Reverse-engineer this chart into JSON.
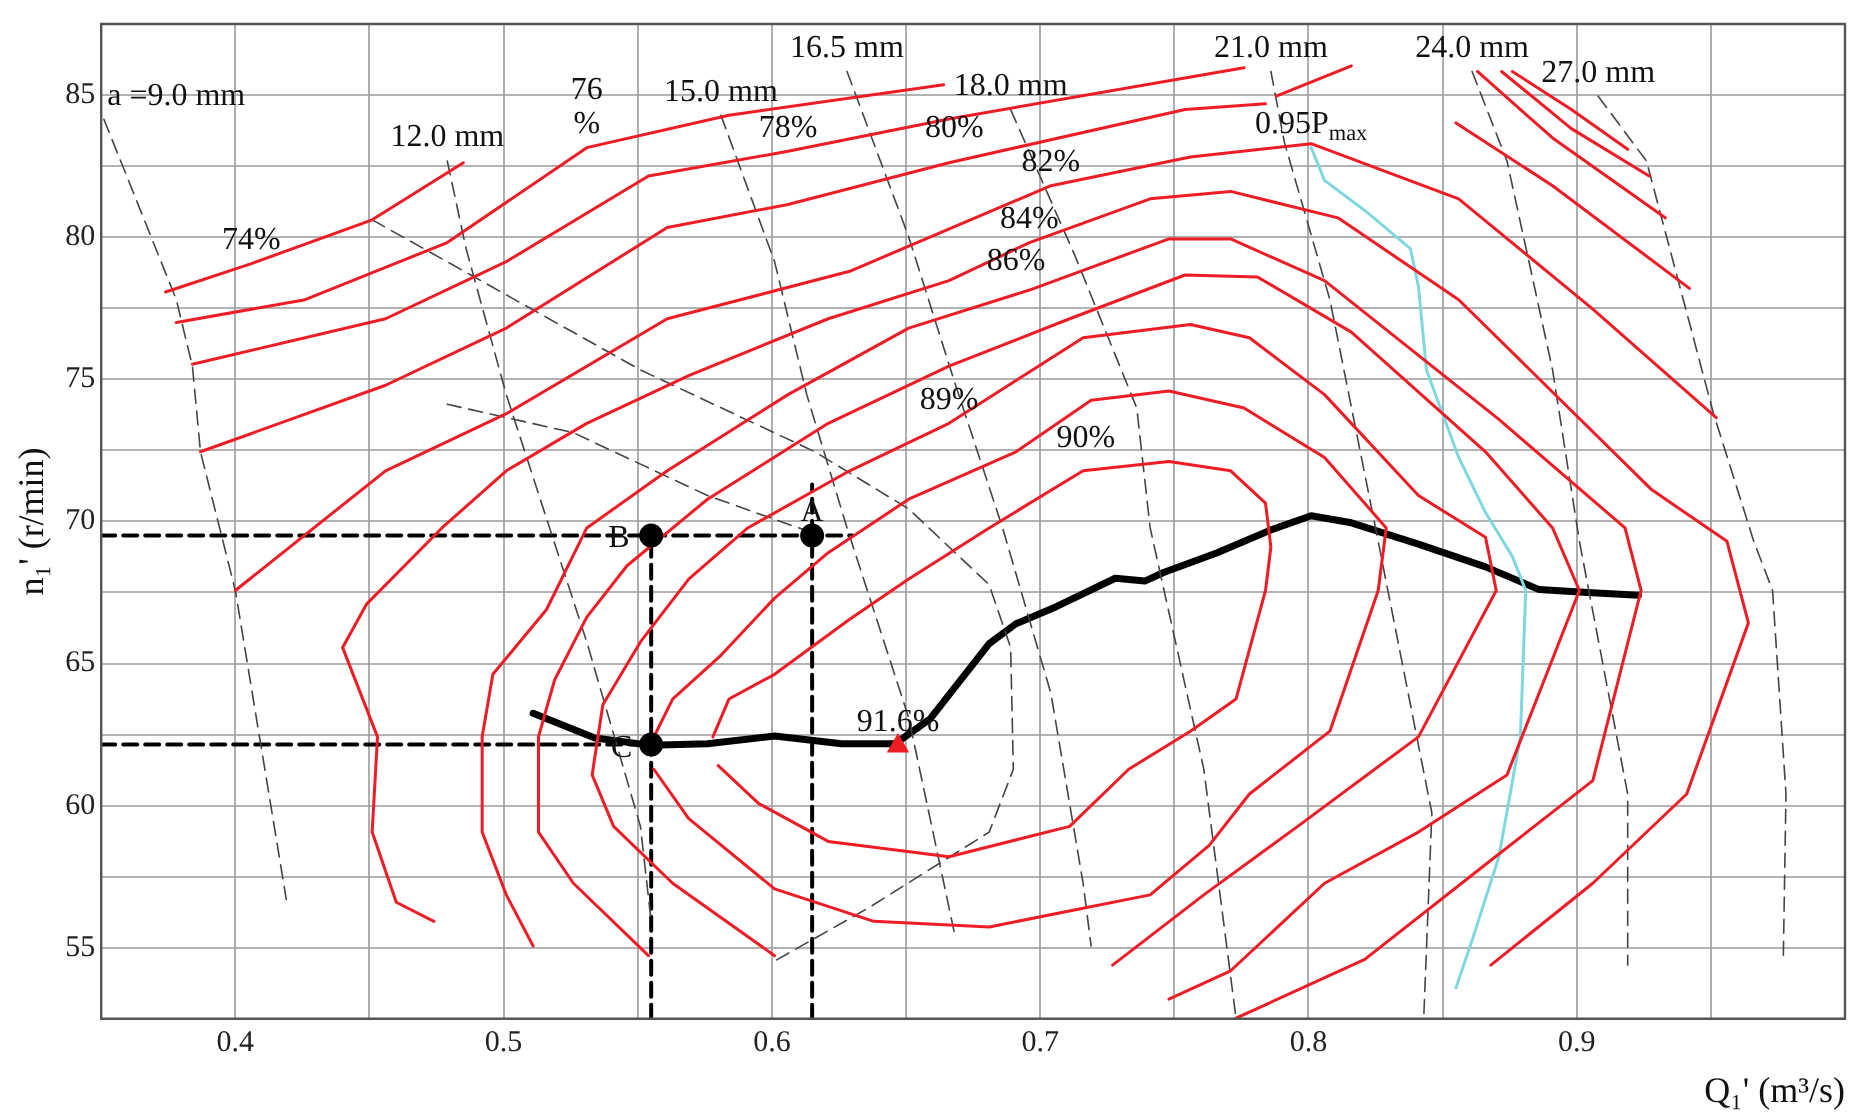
{
  "chart_data": {
    "type": "line",
    "xlabel": "Q₁' (m³/s)",
    "ylabel": "n₁' (r/min)",
    "xlim": [
      0.35,
      1.0
    ],
    "ylim": [
      52.5,
      87.5
    ],
    "xticks": [
      0.4,
      {
        "value": 0.45,
        "label": null
      },
      0.5,
      {
        "value": 0.55,
        "label": null
      },
      0.6,
      {
        "value": 0.65,
        "label": null
      },
      0.7,
      {
        "value": 0.75,
        "label": null
      },
      0.8,
      {
        "value": 0.85,
        "label": null
      },
      0.9,
      {
        "value": 0.95,
        "label": null
      }
    ],
    "yticks": [
      55,
      {
        "value": 57.5,
        "label": null
      },
      60,
      {
        "value": 62.5,
        "label": null
      },
      65,
      {
        "value": 67.5,
        "label": null
      },
      70,
      {
        "value": 72.5,
        "label": null
      },
      75,
      {
        "value": 77.5,
        "label": null
      },
      80,
      {
        "value": 82.5,
        "label": null
      },
      85
    ],
    "grid": true,
    "series": [
      {
        "color": "#ee1c25",
        "x": [
          0.374,
          0.406,
          0.451,
          0.485
        ],
        "values": [
          78.07,
          79.07,
          80.61,
          82.62
        ]
      },
      {
        "color": "#ee1c25",
        "x": [
          0.876,
          0.898,
          0.919
        ],
        "values": [
          85.83,
          84.49,
          83.09
        ]
      },
      {
        "color": "#ee1c25",
        "x": [
          0.378,
          0.426,
          0.479,
          0.531,
          0.584,
          0.664
        ],
        "values": [
          77.0,
          77.8,
          79.81,
          83.15,
          84.29,
          85.36
        ]
      },
      {
        "color": "#ee1c25",
        "x": [
          0.872,
          0.898,
          0.927
        ],
        "values": [
          85.83,
          83.82,
          82.15
        ]
      },
      {
        "color": "#ee1c25",
        "x": [
          0.384,
          0.456,
          0.501,
          0.554,
          0.606,
          0.666,
          0.776
        ],
        "values": [
          75.53,
          77.13,
          79.14,
          82.15,
          83.02,
          84.16,
          85.96
        ]
      },
      {
        "color": "#ee1c25",
        "x": [
          0.863,
          0.891,
          0.933
        ],
        "values": [
          85.83,
          83.49,
          80.68
        ]
      },
      {
        "color": "#ee1c25",
        "x": [
          0.387,
          0.456,
          0.501,
          0.561,
          0.606,
          0.666,
          0.754,
          0.784
        ],
        "values": [
          72.45,
          74.79,
          76.8,
          80.34,
          81.15,
          82.62,
          84.49,
          84.69
        ]
      },
      {
        "color": "#ee1c25",
        "x": [
          0.788,
          0.816
        ],
        "values": [
          84.96,
          86.03
        ]
      },
      {
        "color": "#ee1c25",
        "x": [
          0.855,
          0.891,
          0.942
        ],
        "values": [
          84.02,
          81.81,
          78.2
        ]
      },
      {
        "color": "#ee1c25",
        "x": [
          0.4,
          0.456,
          0.501,
          0.561,
          0.629,
          0.704,
          0.756,
          0.801,
          0.856,
          0.906,
          0.952
        ],
        "values": [
          67.57,
          71.78,
          73.79,
          77.13,
          78.8,
          81.81,
          82.82,
          83.29,
          81.35,
          77.47,
          73.65
        ]
      },
      {
        "color": "#ee1c25",
        "x": [
          0.474,
          0.46,
          0.451,
          0.453,
          0.44,
          0.449,
          0.477,
          0.501,
          0.531,
          0.569,
          0.621,
          0.666,
          0.696,
          0.741,
          0.771,
          0.811,
          0.856,
          0.928,
          0.956,
          0.964,
          0.941,
          0.906,
          0.868
        ],
        "values": [
          55.93,
          56.6,
          59.07,
          62.42,
          65.56,
          67.1,
          69.77,
          71.78,
          73.45,
          75.13,
          77.13,
          78.47,
          79.81,
          81.35,
          81.61,
          80.68,
          77.8,
          71.11,
          69.3,
          66.43,
          60.41,
          57.27,
          54.39
        ]
      },
      {
        "color": "#ee1c25",
        "x": [
          0.511,
          0.501,
          0.492,
          0.492,
          0.496,
          0.516,
          0.531,
          0.561,
          0.606,
          0.651,
          0.696,
          0.748,
          0.771,
          0.806,
          0.871,
          0.918,
          0.924,
          0.906,
          0.866,
          0.821,
          0.773
        ],
        "values": [
          55.06,
          56.86,
          59.07,
          62.42,
          64.62,
          66.9,
          69.77,
          71.78,
          74.46,
          76.8,
          78.14,
          79.94,
          79.94,
          78.47,
          73.59,
          69.77,
          67.57,
          60.88,
          57.93,
          54.59,
          52.52
        ]
      },
      {
        "color": "#ee1c25",
        "x": [
          0.554,
          0.526,
          0.513,
          0.513,
          0.519,
          0.531,
          0.546,
          0.576,
          0.621,
          0.666,
          0.711,
          0.754,
          0.781,
          0.816,
          0.866,
          0.891,
          0.901,
          0.874,
          0.841,
          0.806,
          0.771,
          0.748
        ],
        "values": [
          54.72,
          57.27,
          59.07,
          62.42,
          64.42,
          66.63,
          68.44,
          70.78,
          73.45,
          75.46,
          77.13,
          78.67,
          78.6,
          76.66,
          72.45,
          69.77,
          67.57,
          61.08,
          59.07,
          57.27,
          54.19,
          53.19
        ]
      },
      {
        "color": "#ee1c25",
        "x": [
          0.601,
          0.563,
          0.541,
          0.533,
          0.537,
          0.551,
          0.569,
          0.591,
          0.629,
          0.666,
          0.716,
          0.756,
          0.778,
          0.806,
          0.841,
          0.866,
          0.87,
          0.841,
          0.796,
          0.761,
          0.727
        ],
        "values": [
          54.72,
          57.27,
          59.27,
          61.08,
          63.55,
          65.76,
          67.97,
          69.77,
          71.78,
          73.45,
          76.46,
          76.93,
          76.46,
          74.46,
          70.91,
          69.44,
          67.57,
          62.42,
          59.27,
          56.86,
          54.39
        ]
      },
      {
        "color": "#ee1c25",
        "x": [
          0.555,
          0.563,
          0.581,
          0.601,
          0.621,
          0.651,
          0.691,
          0.719,
          0.748,
          0.776,
          0.806,
          0.829,
          0.826,
          0.808,
          0.778,
          0.763,
          0.741,
          0.681,
          0.638,
          0.601,
          0.569,
          0.556
        ],
        "values": [
          62.22,
          63.75,
          65.29,
          67.3,
          68.9,
          70.78,
          72.45,
          74.26,
          74.59,
          73.99,
          72.25,
          69.77,
          67.57,
          62.62,
          60.41,
          58.6,
          56.86,
          55.73,
          55.93,
          57.07,
          59.54,
          61.28
        ]
      },
      {
        "color": "#ee1c25",
        "x": [
          0.578,
          0.584,
          0.601,
          0.629,
          0.651,
          0.681,
          0.716,
          0.748,
          0.771,
          0.784,
          0.786,
          0.784,
          0.773,
          0.756,
          0.733,
          0.711,
          0.666,
          0.621,
          0.595,
          0.58
        ],
        "values": [
          62.42,
          63.75,
          64.62,
          66.56,
          67.97,
          69.77,
          71.78,
          72.11,
          71.78,
          70.64,
          69.1,
          67.57,
          63.75,
          62.62,
          61.28,
          59.27,
          58.2,
          58.74,
          60.08,
          61.41
        ]
      },
      {
        "color": "#444444",
        "line_style": "dashed",
        "x": [
          0.351,
          0.378,
          0.384,
          0.387,
          0.4,
          0.419
        ],
        "values": [
          84.15,
          77.8,
          75.46,
          72.45,
          67.57,
          56.7
        ]
      },
      {
        "color": "#444444",
        "line_style": "dashed",
        "x": [
          0.479,
          0.486,
          0.501,
          0.516,
          0.531,
          0.551,
          0.555
        ],
        "values": [
          82.68,
          79.6,
          74.46,
          70.1,
          65.76,
          59.27,
          55.93
        ]
      },
      {
        "color": "#444444",
        "line_style": "dashed",
        "x": [
          0.581,
          0.601,
          0.613,
          0.628,
          0.651,
          0.668
        ],
        "values": [
          84.29,
          79.14,
          74.46,
          69.77,
          63.09,
          55.53
        ]
      },
      {
        "color": "#444444",
        "line_style": "dashed",
        "x": [
          0.628,
          0.651,
          0.668,
          0.686,
          0.704,
          0.716,
          0.719
        ],
        "values": [
          85.83,
          80.01,
          74.93,
          69.77,
          63.95,
          57.27,
          55.06
        ]
      },
      {
        "color": "#444444",
        "line_style": "dashed",
        "x": [
          0.689,
          0.713,
          0.736,
          0.741,
          0.761,
          0.773
        ],
        "values": [
          84.49,
          79.34,
          73.99,
          69.77,
          61.28,
          52.52
        ]
      },
      {
        "color": "#444444",
        "line_style": "dashed",
        "x": [
          0.786,
          0.791,
          0.808,
          0.825,
          0.846,
          0.843
        ],
        "values": [
          85.83,
          83.35,
          77.8,
          69.77,
          59.74,
          52.58
        ]
      },
      {
        "color": "#444444",
        "line_style": "dashed",
        "x": [
          0.861,
          0.874,
          0.891,
          0.901,
          0.919,
          0.919
        ],
        "values": [
          85.83,
          82.68,
          75.33,
          69.3,
          60.41,
          54.39
        ]
      },
      {
        "color": "#444444",
        "line_style": "dashed",
        "x": [
          0.908,
          0.926,
          0.951,
          0.966,
          0.973,
          0.978,
          0.977
        ],
        "values": [
          84.96,
          82.68,
          73.79,
          69.3,
          67.57,
          60.41,
          54.59
        ]
      },
      {
        "color": "#444444",
        "line_style": "dashed",
        "x": [
          0.451,
          0.551,
          0.616,
          0.651,
          0.681,
          0.689,
          0.69,
          0.681,
          0.636,
          0.601
        ],
        "values": [
          80.61,
          75.33,
          72.45,
          70.44,
          67.77,
          65.56,
          61.28,
          59.07,
          56.4,
          54.53
        ]
      },
      {
        "color": "#444444",
        "line_style": "dashed",
        "x": [
          0.479,
          0.526,
          0.576,
          0.616
        ],
        "values": [
          74.12,
          73.12,
          70.91,
          69.57
        ]
      },
      {
        "color": "#7fd8e0",
        "x": [
          0.801,
          0.806,
          0.821,
          0.838,
          0.841,
          0.844,
          0.856,
          0.866,
          0.876,
          0.881,
          0.879,
          0.871,
          0.861,
          0.855
        ],
        "values": [
          83.15,
          82.0,
          80.94,
          79.6,
          78.27,
          75.33,
          72.25,
          70.31,
          68.77,
          67.57,
          62.42,
          58.2,
          55.26,
          53.59
        ]
      },
      {
        "color": "#000000",
        "x": [
          0.511,
          0.534,
          0.555,
          0.576,
          0.601,
          0.626,
          0.646,
          0.659,
          0.666,
          0.681,
          0.691,
          0.706,
          0.728,
          0.739,
          0.746,
          0.766,
          0.786,
          0.801,
          0.816,
          0.841,
          0.866,
          0.886,
          0.904,
          0.923
        ],
        "values": [
          63.25,
          62.38,
          62.12,
          62.18,
          62.45,
          62.18,
          62.18,
          63.05,
          63.9,
          65.7,
          66.4,
          67.0,
          68.0,
          67.9,
          68.2,
          68.9,
          69.7,
          70.2,
          69.95,
          69.2,
          68.4,
          67.6,
          67.5,
          67.4
        ]
      },
      {
        "color": "#000000",
        "line_style": "dashed",
        "x": [
          0.35,
          0.63
        ],
        "values": [
          69.5,
          69.5
        ]
      },
      {
        "color": "#000000",
        "line_style": "dashed",
        "x": [
          0.35,
          0.555
        ],
        "values": [
          62.15,
          62.15
        ]
      },
      {
        "color": "#000000",
        "line_style": "dashed",
        "x": [
          0.555,
          0.555
        ],
        "values": [
          52.5,
          69.5
        ]
      },
      {
        "color": "#000000",
        "line_style": "dashed",
        "x": [
          0.615,
          0.615
        ],
        "values": [
          52.5,
          71.3
        ]
      },
      {
        "type": "scatter",
        "color": "#000000",
        "marker": "circle",
        "x": [
          0.615,
          0.555,
          0.555
        ],
        "values": [
          69.5,
          69.5,
          62.15
        ]
      },
      {
        "type": "scatter",
        "color": "#ee1c25",
        "marker": "triangle",
        "x": [
          0.647
        ],
        "values": [
          62.1
        ]
      }
    ],
    "annotations": [
      {
        "text": "a =9.0 mm",
        "x": 0.351,
        "y": 84.15
      },
      {
        "text": "12.0 mm",
        "x": 0.479,
        "y": 82.68
      },
      {
        "text": "15.0 mm",
        "x": 0.581,
        "y": 84.29
      },
      {
        "text": "16.5 mm",
        "x": 0.628,
        "y": 85.83
      },
      {
        "text": "18.0 mm",
        "x": 0.689,
        "y": 84.49
      },
      {
        "text": "21.0 mm",
        "x": 0.786,
        "y": 85.83
      },
      {
        "text": "24.0 mm",
        "x": 0.861,
        "y": 85.83
      },
      {
        "text": "27.0 mm",
        "x": 0.908,
        "y": 84.96
      },
      {
        "text": "74%",
        "x": 0.406,
        "y": 79.07
      },
      {
        "text": "76\n%",
        "x": 0.531,
        "y": 83.15
      },
      {
        "text": "78%",
        "x": 0.606,
        "y": 83.02
      },
      {
        "text": "80%",
        "x": 0.668,
        "y": 83.02
      },
      {
        "text": "82%",
        "x": 0.704,
        "y": 81.81
      },
      {
        "text": "84%",
        "x": 0.696,
        "y": 79.81
      },
      {
        "text": "86%",
        "x": 0.691,
        "y": 78.34
      },
      {
        "text": "89%",
        "x": 0.666,
        "y": 73.45
      },
      {
        "text": "90%",
        "x": 0.717,
        "y": 72.11
      },
      {
        "text": "91.6%",
        "x": 0.647,
        "y": 62.1
      },
      {
        "text": "0.95P$_{max}$",
        "x": 0.801,
        "y": 83.15
      },
      {
        "text": "A",
        "x": 0.615,
        "y": 69.5
      },
      {
        "text": "B",
        "x": 0.543,
        "y": 68.57
      },
      {
        "text": "C",
        "x": 0.544,
        "y": 61.2
      }
    ]
  }
}
